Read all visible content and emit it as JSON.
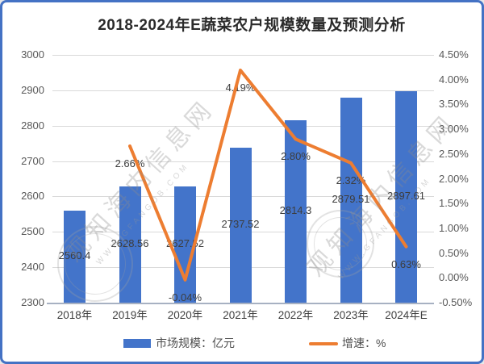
{
  "watermark": {
    "cjk": "观知海内信息网",
    "latin": "WWW.GFANGOB.COM"
  },
  "chart_data": {
    "type": "combo",
    "title": "2018-2024年E蔬菜农户规模数量及预测分析",
    "categories": [
      "2018年",
      "2019年",
      "2020年",
      "2021年",
      "2022年",
      "2023年",
      "2024年E"
    ],
    "series": [
      {
        "name": "市场规模：亿元",
        "type": "bar",
        "axis": "left",
        "color": "#4374CA",
        "values": [
          2560.4,
          2628.56,
          2627.52,
          2737.52,
          2814.3,
          2879.51,
          2897.61
        ],
        "labels": [
          "2560.4",
          "2628.56",
          "2627.52",
          "2737.52",
          "2814.3",
          "2879.51",
          "2897.61"
        ]
      },
      {
        "name": "增速：%",
        "type": "line",
        "axis": "right",
        "color": "#ED7D31",
        "values": [
          null,
          2.66,
          -0.04,
          4.19,
          2.8,
          2.32,
          0.63
        ],
        "labels": [
          "",
          "2.66%",
          "-0.04%",
          "4.19%",
          "2.80%",
          "2.32%",
          "0.63%"
        ]
      }
    ],
    "left_axis": {
      "min": 2300,
      "max": 3000,
      "step": 100,
      "ticks": [
        "3000",
        "2900",
        "2800",
        "2700",
        "2600",
        "2500",
        "2400",
        "2300"
      ]
    },
    "right_axis": {
      "min": -0.5,
      "max": 4.5,
      "step": 0.5,
      "ticks": [
        "4.50%",
        "4.00%",
        "3.50%",
        "3.00%",
        "2.50%",
        "2.00%",
        "1.50%",
        "1.00%",
        "0.50%",
        "0.00%",
        "-0.50%"
      ]
    },
    "grid": true,
    "legend_position": "bottom"
  }
}
